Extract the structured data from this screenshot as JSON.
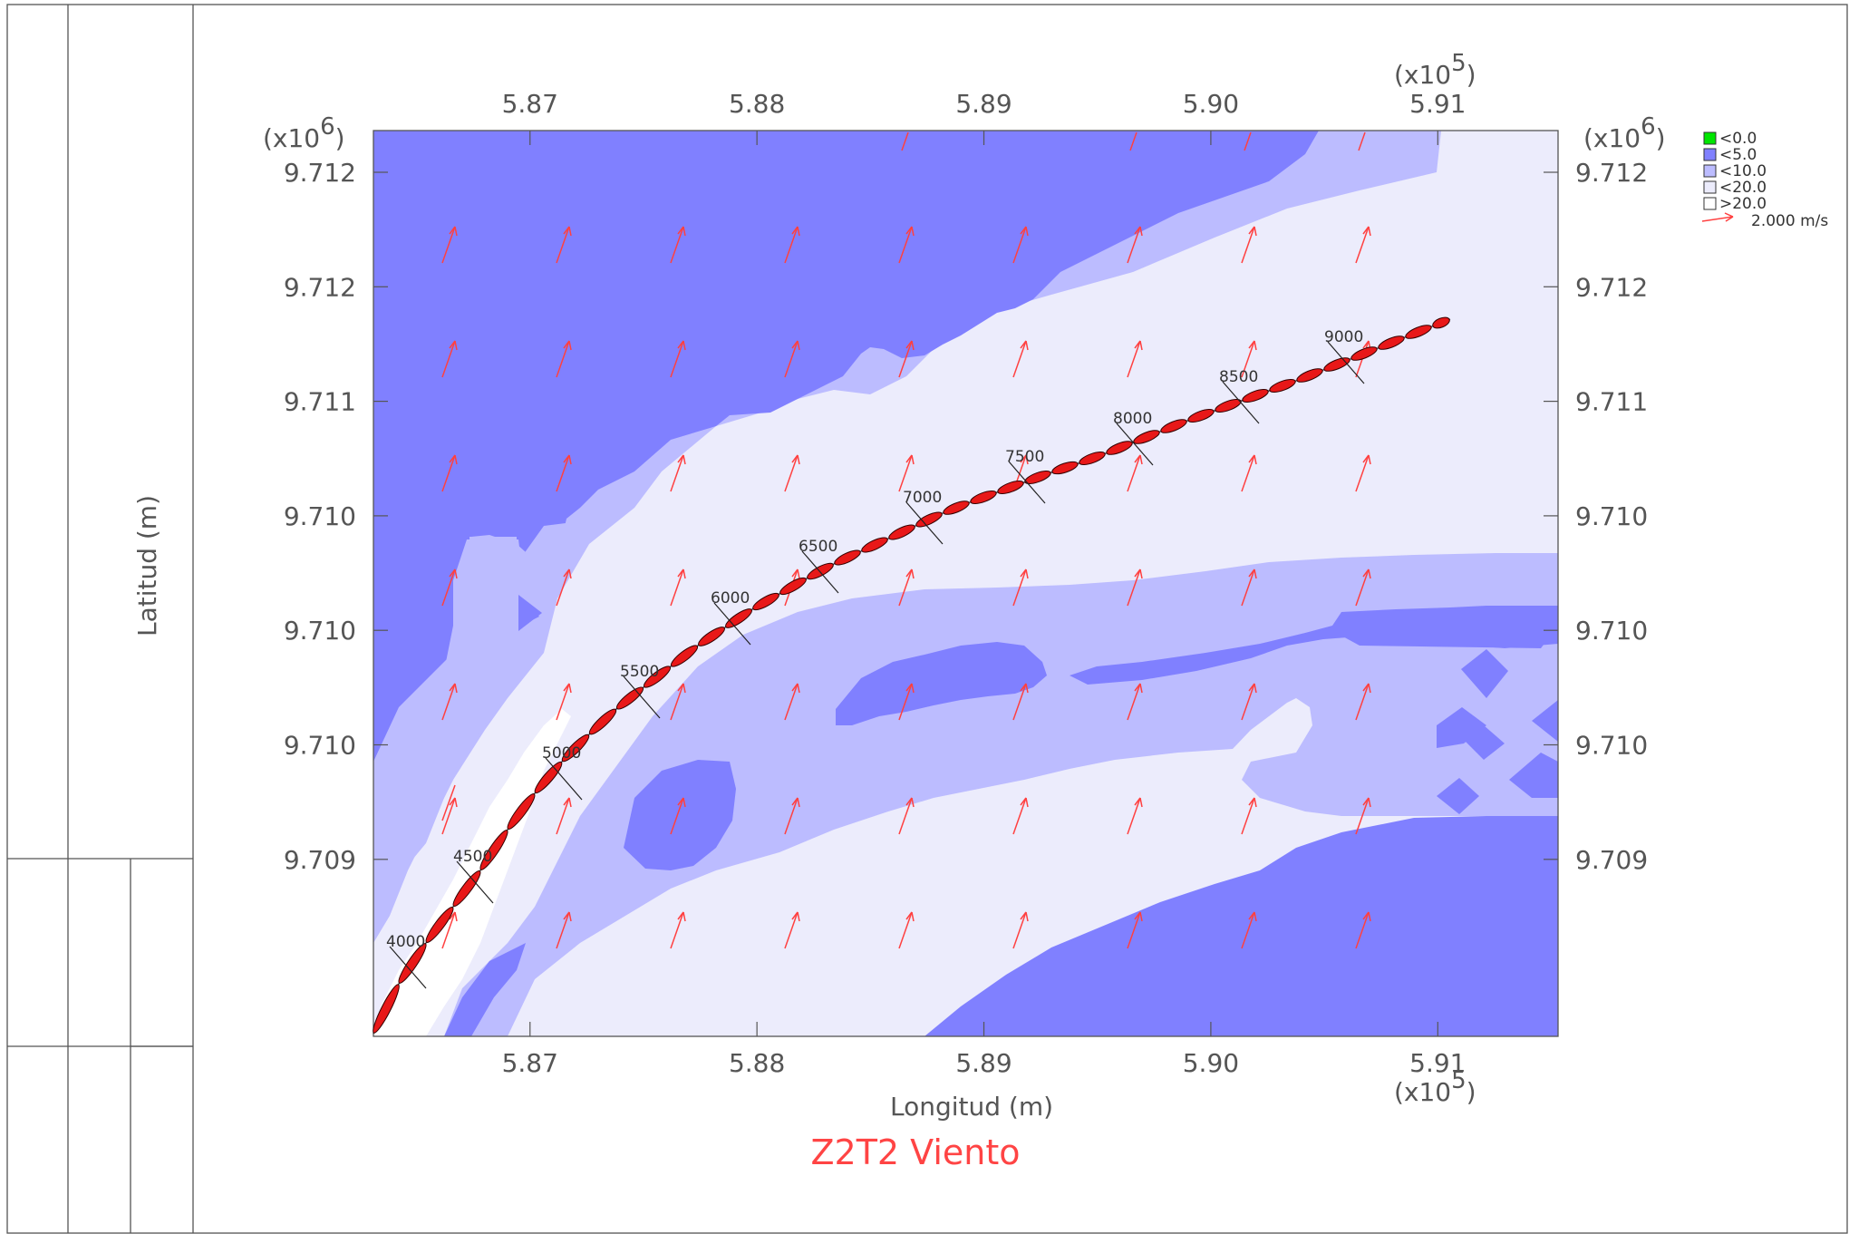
{
  "chart_data": {
    "type": "contour",
    "title": "Z2T2 Viento",
    "xlabel": "Longitud (m)",
    "ylabel": "Latitud (m)",
    "x_multiplier": "(x10",
    "x_multiplier_exp": "5",
    "y_multiplier": "(x10",
    "y_multiplier_exp": "6",
    "multiplier_close": ")",
    "xlim": [
      5.8631,
      5.9153
    ],
    "x_ticks": [
      {
        "value": 5.87,
        "label": "5.87"
      },
      {
        "value": 5.88,
        "label": "5.88"
      },
      {
        "value": 5.89,
        "label": "5.89"
      },
      {
        "value": 5.9,
        "label": "5.90"
      },
      {
        "value": 5.91,
        "label": "5.91"
      }
    ],
    "y_ticks": [
      {
        "label": "9.712"
      },
      {
        "label": "9.712"
      },
      {
        "label": "9.711"
      },
      {
        "label": "9.710"
      },
      {
        "label": "9.710"
      },
      {
        "label": "9.710"
      },
      {
        "label": "9.709"
      }
    ],
    "legend": {
      "placement": "right",
      "items": [
        {
          "label": "<0.0",
          "color": "#00e600"
        },
        {
          "label": "<5.0",
          "color": "#8080ff"
        },
        {
          "label": "<10.0",
          "color": "#bcbcff"
        },
        {
          "label": "<20.0",
          "color": "#ececfc"
        },
        {
          "label": ">20.0",
          "color": "#ffffff"
        }
      ],
      "vector_label": "2.000 m/s",
      "vector_color": "#ff4040"
    },
    "chainage_labels": [
      "4000",
      "4500",
      "5000",
      "5500",
      "6000",
      "6500",
      "7000",
      "7500",
      "8000",
      "8500",
      "9000"
    ],
    "colors": {
      "band_lt5": "#8080ff",
      "band_lt10": "#bcbcff",
      "band_lt20": "#ececfc",
      "band_gt20": "#ffffff",
      "alignment": "#e81818",
      "vectors": "#ff4040",
      "title": "#ff4444"
    }
  }
}
